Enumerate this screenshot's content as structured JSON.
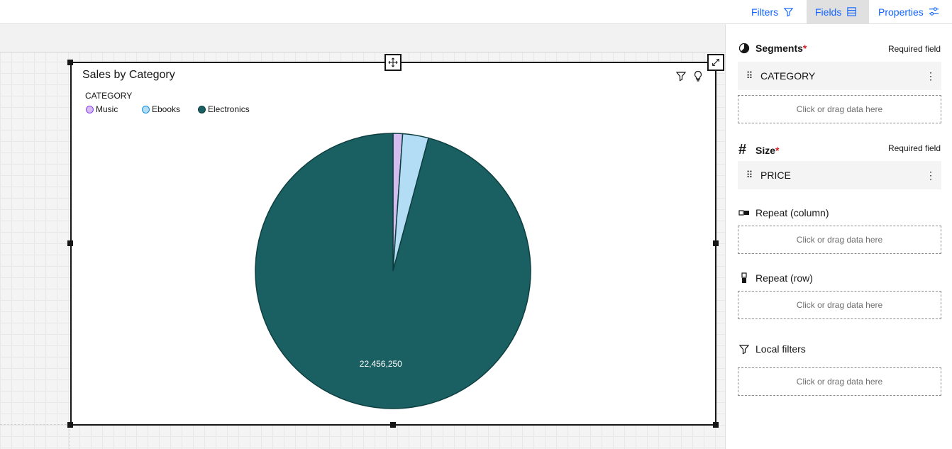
{
  "toolbar": {
    "filters_label": "Filters",
    "fields_label": "Fields",
    "properties_label": "Properties",
    "active_tab": "Fields"
  },
  "widget": {
    "title": "Sales by Category",
    "legend_title": "CATEGORY",
    "legend": [
      {
        "name": "Music",
        "fill": "#d4bbf0",
        "stroke": "#8a3ffc"
      },
      {
        "name": "Ebooks",
        "fill": "#b3dcf5",
        "stroke": "#1192e8"
      },
      {
        "name": "Electronics",
        "fill": "#1a5f61",
        "stroke": "#0d3f40"
      }
    ]
  },
  "chart_data": {
    "type": "pie",
    "title": "Sales by Category",
    "legend_title": "CATEGORY",
    "categories": [
      "Music",
      "Ebooks",
      "Electronics"
    ],
    "values": [
      263000,
      711000,
      22456250
    ],
    "colors": [
      "#d4bbf0",
      "#b3dcf5",
      "#1a5f61"
    ],
    "data_labels": [
      "",
      "",
      "22,456,250"
    ],
    "legend_position": "top-left"
  },
  "panel": {
    "segments": {
      "title": "Segments",
      "required_text": "Required field",
      "field": "CATEGORY",
      "drop_text": "Click or drag data here"
    },
    "size": {
      "title": "Size",
      "required_text": "Required field",
      "field": "PRICE"
    },
    "repeat_column": {
      "title": "Repeat (column)",
      "drop_text": "Click or drag data here"
    },
    "repeat_row": {
      "title": "Repeat (row)",
      "drop_text": "Click or drag data here"
    },
    "local_filters": {
      "title": "Local filters",
      "drop_text": "Click or drag data here"
    }
  }
}
